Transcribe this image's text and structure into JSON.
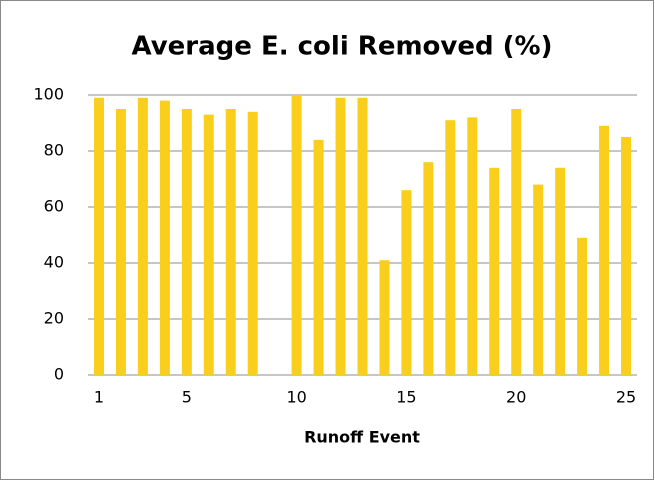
{
  "chart_data": {
    "type": "bar",
    "title": "Average E. coli Removed (%)",
    "x_label": "Runoff Event",
    "categories": [
      "1",
      null,
      null,
      null,
      "5",
      null,
      null,
      null,
      null,
      "10",
      null,
      null,
      null,
      null,
      "15",
      null,
      null,
      null,
      null,
      "20",
      null,
      null,
      null,
      null,
      "25"
    ],
    "values": [
      99,
      95,
      99,
      98,
      95,
      93,
      95,
      94,
      null,
      100,
      84,
      99,
      99,
      41,
      66,
      76,
      91,
      92,
      74,
      95,
      68,
      74,
      49,
      89,
      85
    ],
    "color": "#f9cf1c",
    "ylim": [
      0,
      100
    ],
    "yticks": [
      0,
      20,
      40,
      60,
      80,
      100
    ],
    "grid": true
  }
}
